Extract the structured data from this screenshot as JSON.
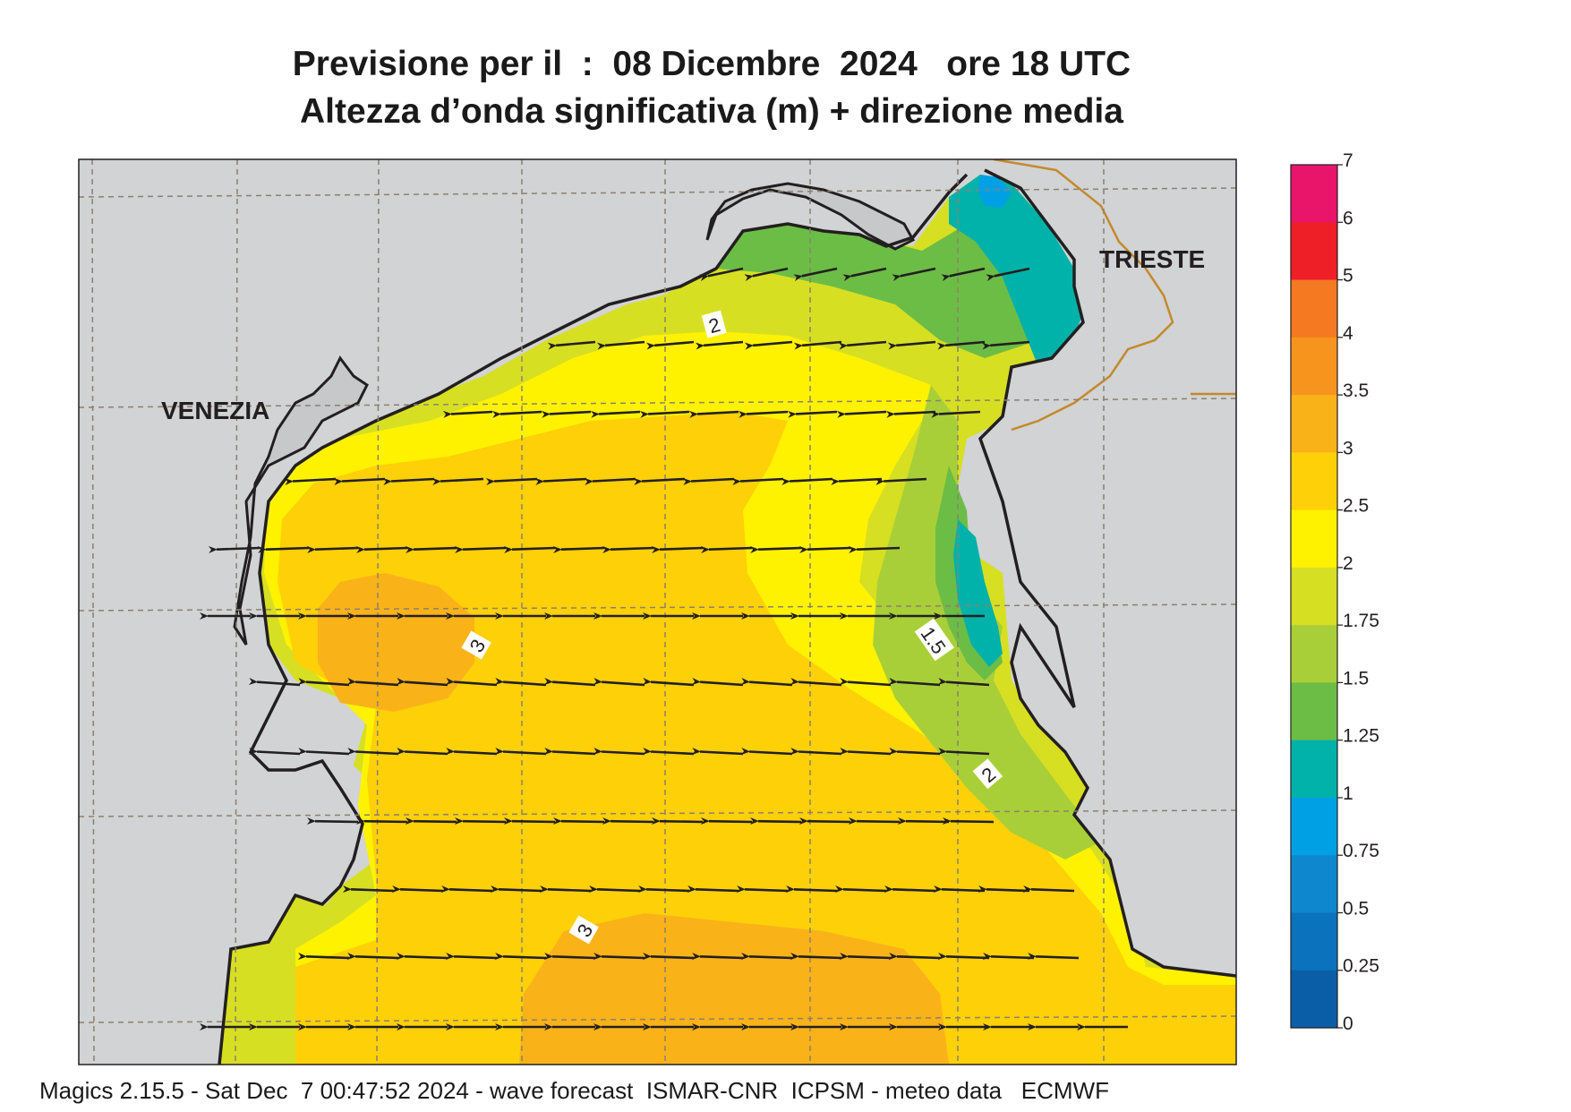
{
  "title": {
    "line1": "Previsione per il  :  08 Dicembre  2024   ore 18 UTC",
    "line2": "Altezza d’onda significativa (m) + direzione media"
  },
  "places": {
    "venezia": "VENEZIA",
    "trieste": "TRIESTE"
  },
  "contour_labels": [
    "2",
    "3",
    "1.5",
    "2",
    "3"
  ],
  "legend": {
    "ticks": [
      "7",
      "6",
      "5",
      "4",
      "3.5",
      "3",
      "2.5",
      "2",
      "1.75",
      "1.5",
      "1.25",
      "1",
      "0.75",
      "0.5",
      "0.25",
      "0"
    ],
    "colors": [
      "#e8156b",
      "#ee1f27",
      "#f47921",
      "#f7941d",
      "#fab219",
      "#fdd007",
      "#fff200",
      "#d7df23",
      "#a9cf38",
      "#6cbd45",
      "#00b2a9",
      "#00a1e4",
      "#0e87cf",
      "#0b72bd",
      "#0a5ea8"
    ]
  },
  "colors": {
    "land": "#d1d3d4",
    "coast": "#231f20",
    "border": "#c4892c",
    "grid": "#8c8070",
    "arrow": "#231f20"
  },
  "footer": "Magics 2.15.5 - Sat Dec  7 00:47:52 2024 - wave forecast  ISMAR-CNR  ICPSM - meteo data   ECMWF"
}
